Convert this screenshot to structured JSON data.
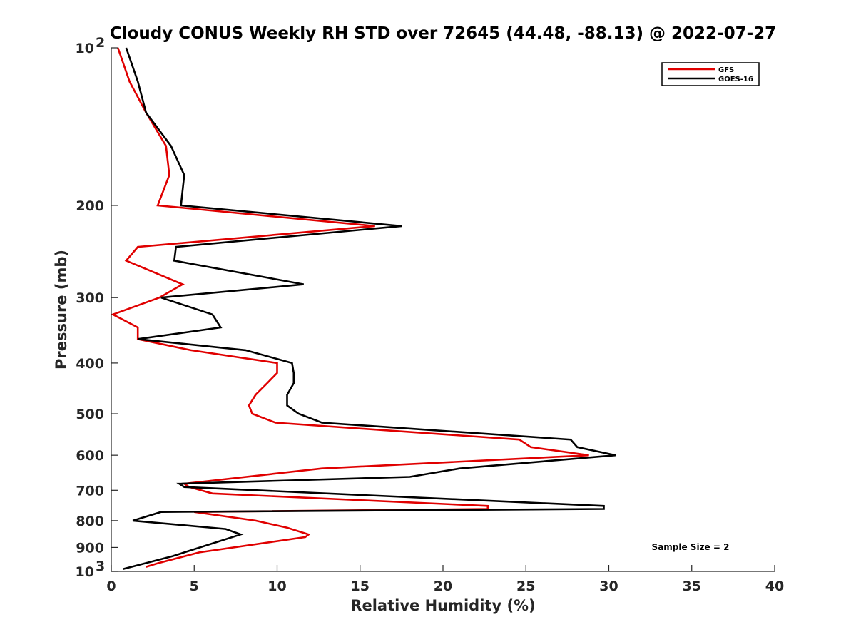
{
  "chart_data": {
    "type": "line",
    "title": "Cloudy CONUS Weekly RH STD over 72645 (44.48, -88.13) @ 2022-07-27",
    "xlabel": "Relative Humidity (%)",
    "ylabel": "Pressure (mb)",
    "xlim": [
      0,
      40
    ],
    "ylim": [
      100,
      1000
    ],
    "y_scale": "log",
    "y_reversed": true,
    "x_ticks": [
      0,
      5,
      10,
      15,
      20,
      25,
      30,
      35,
      40
    ],
    "y_ticks": [
      {
        "value": 100,
        "label": "10",
        "sup": "2"
      },
      {
        "value": 200,
        "label": "200"
      },
      {
        "value": 300,
        "label": "300"
      },
      {
        "value": 400,
        "label": "400"
      },
      {
        "value": 500,
        "label": "500"
      },
      {
        "value": 600,
        "label": "600"
      },
      {
        "value": 700,
        "label": "700"
      },
      {
        "value": 800,
        "label": "800"
      },
      {
        "value": 900,
        "label": "900"
      },
      {
        "value": 1000,
        "label": "10",
        "sup": "3"
      }
    ],
    "grid": false,
    "legend": "top-right",
    "annotation": "Sample Size = 2",
    "series": [
      {
        "name": "GFS",
        "color": "#e00000",
        "points": [
          [
            0.4,
            100
          ],
          [
            1.1,
            116
          ],
          [
            2.1,
            133
          ],
          [
            3.3,
            154
          ],
          [
            3.5,
            175
          ],
          [
            2.8,
            200
          ],
          [
            15.9,
            219
          ],
          [
            1.6,
            240
          ],
          [
            0.9,
            255
          ],
          [
            4.3,
            283
          ],
          [
            2.9,
            300
          ],
          [
            0.1,
            323
          ],
          [
            1.6,
            342
          ],
          [
            1.6,
            360
          ],
          [
            4.8,
            378
          ],
          [
            10.0,
            400
          ],
          [
            10.0,
            418
          ],
          [
            9.4,
            437
          ],
          [
            8.7,
            460
          ],
          [
            8.3,
            482
          ],
          [
            8.5,
            500
          ],
          [
            9.9,
            520
          ],
          [
            24.6,
            560
          ],
          [
            25.3,
            579
          ],
          [
            28.8,
            600
          ],
          [
            12.7,
            636
          ],
          [
            4.4,
            680
          ],
          [
            4.7,
            690
          ],
          [
            6.1,
            710
          ],
          [
            22.7,
            750
          ],
          [
            22.7,
            760
          ],
          [
            5.0,
            770
          ],
          [
            8.7,
            800
          ],
          [
            10.6,
            825
          ],
          [
            11.9,
            850
          ],
          [
            11.7,
            860
          ],
          [
            5.3,
            920
          ],
          [
            2.8,
            965
          ],
          [
            2.1,
            980
          ]
        ]
      },
      {
        "name": "GOES-16",
        "color": "#000000",
        "points": [
          [
            0.9,
            100
          ],
          [
            1.6,
            116
          ],
          [
            2.1,
            133
          ],
          [
            3.6,
            154
          ],
          [
            4.4,
            175
          ],
          [
            4.2,
            200
          ],
          [
            17.5,
            219
          ],
          [
            3.9,
            240
          ],
          [
            3.8,
            255
          ],
          [
            11.6,
            283
          ],
          [
            3.0,
            300
          ],
          [
            6.1,
            323
          ],
          [
            6.6,
            342
          ],
          [
            1.6,
            360
          ],
          [
            8.1,
            378
          ],
          [
            10.9,
            400
          ],
          [
            11.0,
            418
          ],
          [
            11.0,
            437
          ],
          [
            10.6,
            460
          ],
          [
            10.6,
            482
          ],
          [
            11.3,
            500
          ],
          [
            12.7,
            520
          ],
          [
            27.7,
            560
          ],
          [
            28.1,
            579
          ],
          [
            30.4,
            600
          ],
          [
            21.0,
            636
          ],
          [
            18.0,
            660
          ],
          [
            4.1,
            680
          ],
          [
            4.4,
            690
          ],
          [
            29.7,
            750
          ],
          [
            29.7,
            760
          ],
          [
            3.0,
            770
          ],
          [
            1.3,
            800
          ],
          [
            6.9,
            830
          ],
          [
            7.8,
            850
          ],
          [
            3.7,
            935
          ],
          [
            0.7,
            990
          ]
        ]
      }
    ]
  }
}
